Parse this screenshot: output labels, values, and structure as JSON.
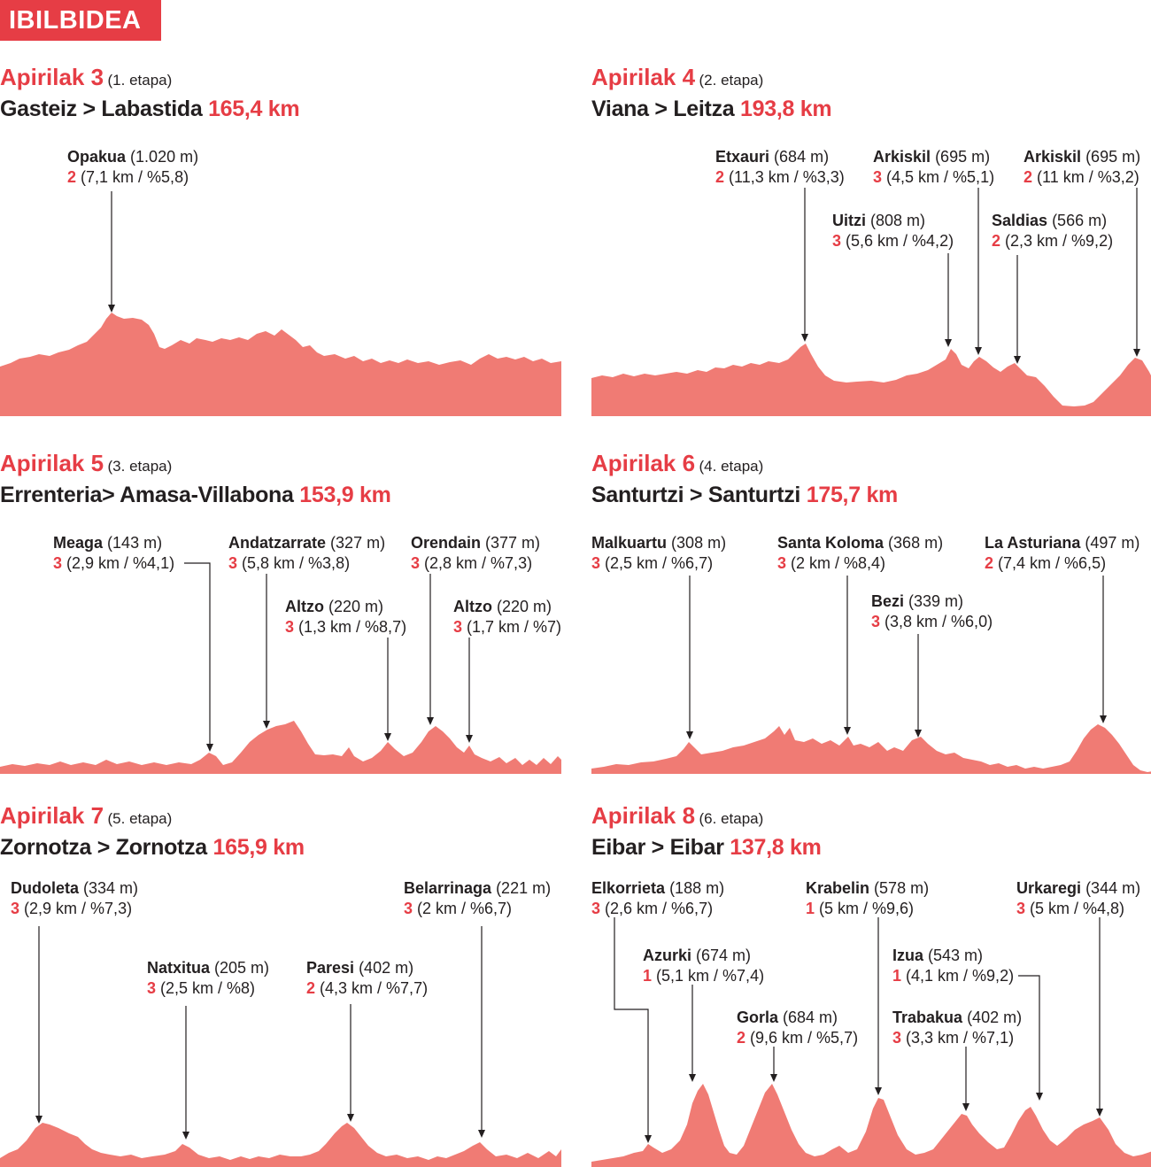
{
  "header": {
    "title": "IBILBIDEA"
  },
  "colors": {
    "accent": "#e63d45",
    "profile": "#f07b74",
    "text": "#231f20"
  },
  "stages": [
    {
      "date": "Apirilak 3",
      "stage": "(1. etapa)",
      "route": "Gasteiz > Labastida",
      "distance": "165,4 km",
      "climbs": [
        {
          "name": "Opakua",
          "alt": "(1.020 m)",
          "cat": "2",
          "info": "(7,1 km / %5,8)"
        }
      ]
    },
    {
      "date": "Apirilak 4",
      "stage": "(2. etapa)",
      "route": "Viana > Leitza",
      "distance": "193,8 km",
      "climbs": [
        {
          "name": "Etxauri",
          "alt": "(684 m)",
          "cat": "2",
          "info": "(11,3 km / %3,3)"
        },
        {
          "name": "Arkiskil",
          "alt": "(695 m)",
          "cat": "3",
          "info": "(4,5 km / %5,1)"
        },
        {
          "name": "Arkiskil",
          "alt": "(695 m)",
          "cat": "2",
          "info": "(11 km / %3,2)"
        },
        {
          "name": "Uitzi",
          "alt": "(808 m)",
          "cat": "3",
          "info": "(5,6 km / %4,2)"
        },
        {
          "name": "Saldias",
          "alt": "(566 m)",
          "cat": "2",
          "info": "(2,3 km / %9,2)"
        }
      ]
    },
    {
      "date": "Apirilak 5",
      "stage": "(3. etapa)",
      "route": "Errenteria> Amasa-Villabona",
      "distance": "153,9 km",
      "climbs": [
        {
          "name": "Meaga",
          "alt": "(143 m)",
          "cat": "3",
          "info": "(2,9 km / %4,1)"
        },
        {
          "name": "Andatzarrate",
          "alt": "(327 m)",
          "cat": "3",
          "info": "(5,8 km / %3,8)"
        },
        {
          "name": "Orendain",
          "alt": "(377 m)",
          "cat": "3",
          "info": "(2,8 km / %7,3)"
        },
        {
          "name": "Altzo",
          "alt": "(220 m)",
          "cat": "3",
          "info": "(1,3 km / %8,7)"
        },
        {
          "name": "Altzo",
          "alt": "(220 m)",
          "cat": "3",
          "info": "(1,7 km / %7)"
        }
      ]
    },
    {
      "date": "Apirilak 6",
      "stage": "(4. etapa)",
      "route": "Santurtzi > Santurtzi",
      "distance": "175,7 km",
      "climbs": [
        {
          "name": "Malkuartu",
          "alt": "(308 m)",
          "cat": "3",
          "info": "(2,5 km / %6,7)"
        },
        {
          "name": "Santa Koloma",
          "alt": "(368 m)",
          "cat": "3",
          "info": "(2 km / %8,4)"
        },
        {
          "name": "La Asturiana",
          "alt": "(497 m)",
          "cat": "2",
          "info": "(7,4 km / %6,5)"
        },
        {
          "name": "Bezi",
          "alt": "(339 m)",
          "cat": "3",
          "info": "(3,8 km / %6,0)"
        }
      ]
    },
    {
      "date": "Apirilak 7",
      "stage": "(5. etapa)",
      "route": "Zornotza > Zornotza",
      "distance": "165,9 km",
      "climbs": [
        {
          "name": "Dudoleta",
          "alt": "(334 m)",
          "cat": "3",
          "info": "(2,9 km / %7,3)"
        },
        {
          "name": "Belarrinaga",
          "alt": "(221 m)",
          "cat": "3",
          "info": "(2 km / %6,7)"
        },
        {
          "name": "Natxitua",
          "alt": "(205 m)",
          "cat": "3",
          "info": "(2,5 km / %8)"
        },
        {
          "name": "Paresi",
          "alt": "(402 m)",
          "cat": "2",
          "info": "(4,3 km / %7,7)"
        }
      ]
    },
    {
      "date": "Apirilak 8",
      "stage": "(6. etapa)",
      "route": "Eibar > Eibar",
      "distance": "137,8 km",
      "climbs": [
        {
          "name": "Elkorrieta",
          "alt": "(188 m)",
          "cat": "3",
          "info": "(2,6 km / %6,7)"
        },
        {
          "name": "Krabelin",
          "alt": "(578 m)",
          "cat": "1",
          "info": "(5 km / %9,6)"
        },
        {
          "name": "Urkaregi",
          "alt": "(344 m)",
          "cat": "3",
          "info": "(5 km / %4,8)"
        },
        {
          "name": "Azurki",
          "alt": "(674 m)",
          "cat": "1",
          "info": "(5,1 km / %7,4)"
        },
        {
          "name": "Izua",
          "alt": "(543 m)",
          "cat": "1",
          "info": "(4,1 km / %9,2)"
        },
        {
          "name": "Gorla",
          "alt": "(684 m)",
          "cat": "2",
          "info": "(9,6 km / %5,7)"
        },
        {
          "name": "Trabakua",
          "alt": "(402 m)",
          "cat": "3",
          "info": "(3,3 km / %7,1)"
        }
      ]
    }
  ]
}
